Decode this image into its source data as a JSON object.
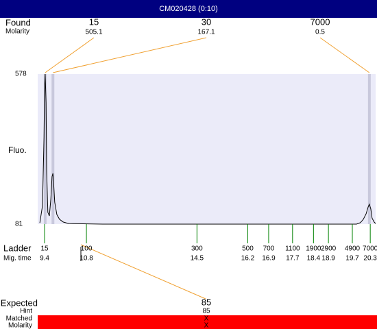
{
  "header": {
    "title": "CM020428 (0:10)"
  },
  "found": {
    "label": "Found",
    "sublabel": "Molarity",
    "sizes": [
      15,
      30,
      7000
    ],
    "molarity": [
      505.1,
      167.1,
      0.5
    ],
    "times": [
      9.42,
      9.68,
      20.27
    ]
  },
  "chart_data": {
    "type": "line",
    "y_label": "Fluo.",
    "x": [
      9.24,
      9.33,
      9.38,
      9.4,
      9.42,
      9.45,
      9.47,
      9.51,
      9.56,
      9.61,
      9.65,
      9.68,
      9.7,
      9.74,
      9.81,
      9.9,
      10.02,
      10.2,
      11.35,
      14.79,
      19.84,
      19.97,
      20.07,
      20.16,
      20.23,
      20.27,
      20.32,
      20.36,
      20.43,
      20.48
    ],
    "values": [
      85,
      142,
      369,
      528,
      578,
      483,
      256,
      120,
      108,
      165,
      238,
      249,
      222,
      154,
      113,
      97,
      88,
      83,
      81,
      81,
      81,
      86,
      97,
      115,
      138,
      147,
      131,
      101,
      88,
      83
    ],
    "color": "#000000",
    "background": "#ebebf9",
    "xlim": [
      9.17,
      20.48
    ],
    "ylim": [
      81,
      578
    ],
    "yticks": [
      81,
      578
    ]
  },
  "ladder": {
    "label": "Ladder",
    "sublabel": "Mig. time",
    "sizes": [
      15,
      100,
      300,
      500,
      700,
      1100,
      1900,
      2900,
      4900,
      7000
    ],
    "times": [
      9.4,
      10.8,
      14.5,
      16.2,
      16.9,
      17.7,
      18.4,
      18.9,
      19.7,
      20.3
    ]
  },
  "expected": {
    "label": "Expected",
    "size": 85,
    "rows": [
      {
        "label": "Hint",
        "value": 85
      },
      {
        "label": "Matched",
        "value": "X"
      },
      {
        "label": "Molarity",
        "value": "X"
      }
    ]
  }
}
